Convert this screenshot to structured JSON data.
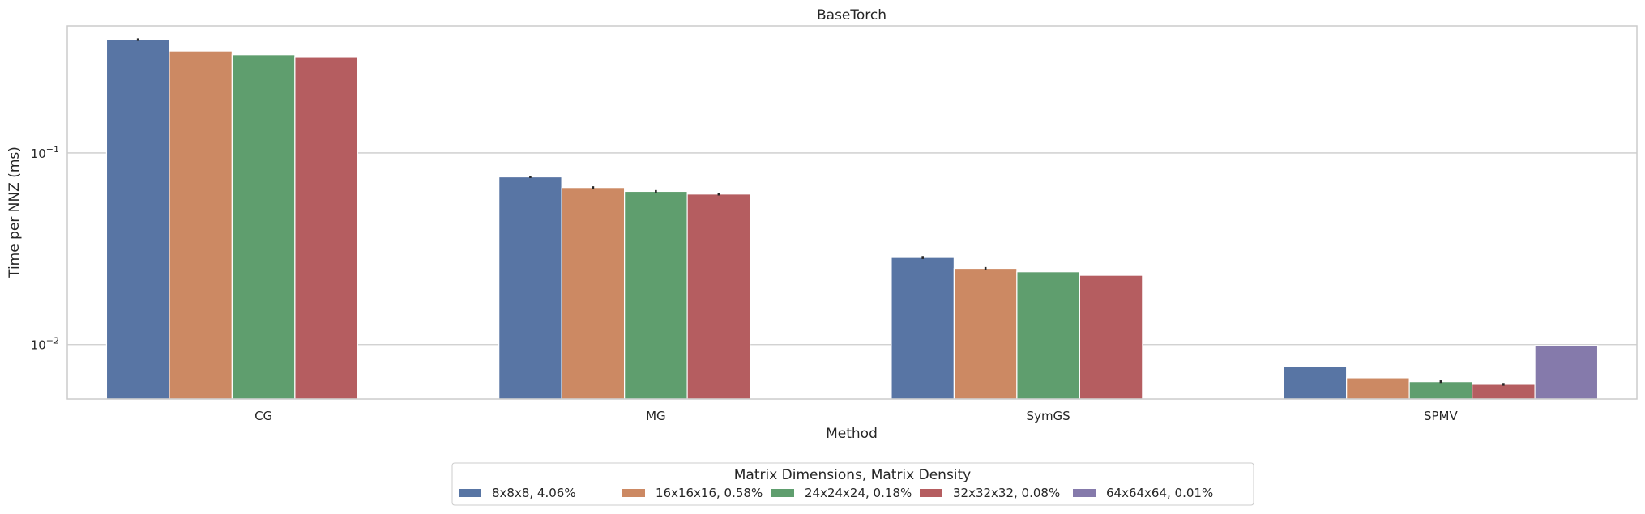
{
  "chart_data": {
    "type": "bar",
    "title": "BaseTorch",
    "xlabel": "Method",
    "ylabel": "Time per NNZ (ms)",
    "yscale": "log",
    "ylim": [
      0.0052,
      0.46
    ],
    "yticks": [
      {
        "value": 0.1,
        "base": "10",
        "exp": "−1"
      },
      {
        "value": 0.01,
        "base": "10",
        "exp": "−2"
      }
    ],
    "grid": "horizontal",
    "legend_placement": "bottom-center",
    "legend_title": "Matrix Dimensions, Matrix Density",
    "categories": [
      "CG",
      "MG",
      "SymGS",
      "SPMV"
    ],
    "series": [
      {
        "name": "8x8x8, 4.06%",
        "color": "#5875a4",
        "values": [
          0.39,
          0.075,
          0.0285,
          0.0077
        ],
        "error": [
          0.006,
          0.001,
          0.0005,
          0
        ]
      },
      {
        "name": "16x16x16, 0.58%",
        "color": "#cc8963",
        "values": [
          0.34,
          0.066,
          0.025,
          0.0067
        ],
        "error": [
          0,
          0.001,
          0.0004,
          0
        ]
      },
      {
        "name": "24x24x24, 0.18%",
        "color": "#5f9e6e",
        "values": [
          0.325,
          0.063,
          0.024,
          0.0064
        ],
        "error": [
          0,
          0.001,
          0,
          0.0001
        ]
      },
      {
        "name": "32x32x32, 0.08%",
        "color": "#b55d60",
        "values": [
          0.315,
          0.061,
          0.023,
          0.0062
        ],
        "error": [
          0,
          0.001,
          0,
          0.0001
        ]
      },
      {
        "name": "64x64x64, 0.01%",
        "color": "#857aab",
        "values": [
          null,
          null,
          null,
          0.0099
        ],
        "error": [
          0,
          0,
          0,
          0
        ]
      }
    ]
  }
}
